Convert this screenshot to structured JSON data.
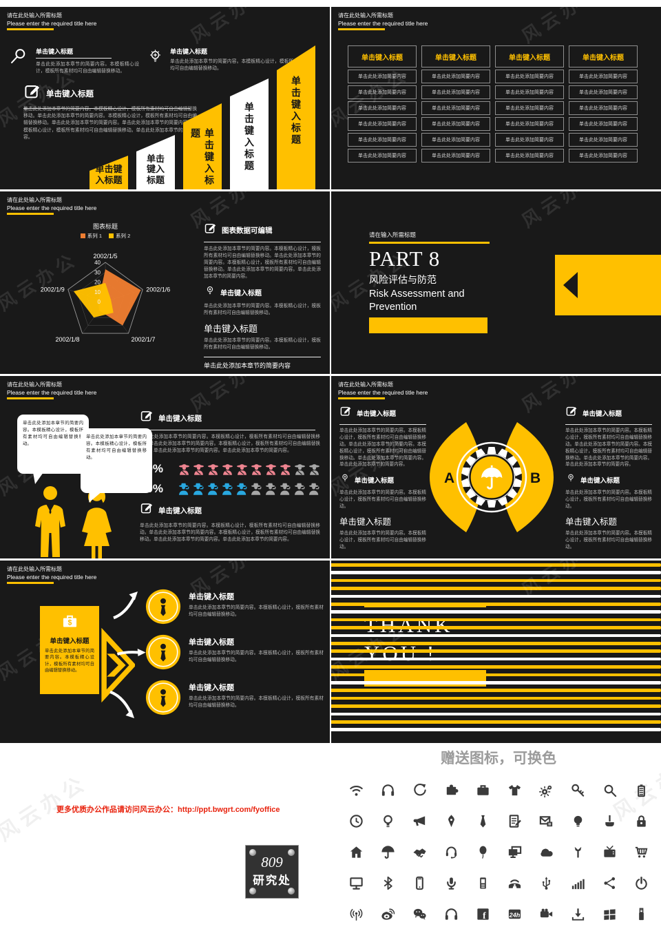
{
  "watermark": "风云办公",
  "colors": {
    "accent_yellow": "#FFC000",
    "radar_orange": "#ED7D31",
    "slide_background": "#191919",
    "figure_pink": "#EE8490",
    "figure_blue": "#29A8E0",
    "figure_gray": "#A7A7A7",
    "link_red": "#E8220D"
  },
  "slide_header": {
    "title_cn": "请在此处输入所需标题",
    "title_en": "Please enter the required title here"
  },
  "slide1": {
    "sections": [
      {
        "title": "单击键入标题",
        "body": "单击此处添加本章节的简要内容。本模板精心设计，模板所有素材均可自由编辑替换移动。"
      },
      {
        "title": "单击键入标题",
        "body": "单击此处添加本章节的简要内容。本模板精心设计，模板所有素材均可自由编辑替换移动。"
      }
    ],
    "edit_section": {
      "title": "单击键入标题",
      "body": "单击此处添加本章节的简要内容。本模板精心设计，模板所有素材均可自由编辑替换移动。单击此处添加本章节的简要内容。本模板精心设计，模板所有素材均可自由编辑替换移动。单击此处添加本章节的简要内容。单击此处添加本章节的简要内容。本模板精心设计，模板所有素材均可自由编辑替换移动。单击此处添加本章节的简要内容。"
    },
    "bars": [
      {
        "label": "单击键入标题"
      },
      {
        "label": "单击键入标题"
      },
      {
        "label": "单击键入标题"
      },
      {
        "label": "单击键入标题"
      },
      {
        "label": "单击键入标题"
      }
    ]
  },
  "slide2": {
    "columns": [
      {
        "header": "单击键入标题",
        "rows": [
          "单击此处添加简要内容",
          "单击此处添加简要内容",
          "单击此处添加简要内容",
          "单击此处添加简要内容",
          "单击此处添加简要内容",
          "单击此处添加简要内容"
        ]
      },
      {
        "header": "单击键入标题",
        "rows": [
          "单击此处添加简要内容",
          "单击此处添加简要内容",
          "单击此处添加简要内容",
          "单击此处添加简要内容",
          "单击此处添加简要内容",
          "单击此处添加简要内容"
        ]
      },
      {
        "header": "单击键入标题",
        "rows": [
          "单击此处添加简要内容",
          "单击此处添加简要内容",
          "单击此处添加简要内容",
          "单击此处添加简要内容",
          "单击此处添加简要内容",
          "单击此处添加简要内容"
        ]
      },
      {
        "header": "单击键入标题",
        "rows": [
          "单击此处添加简要内容",
          "单击此处添加简要内容",
          "单击此处添加简要内容",
          "单击此处添加简要内容",
          "单击此处添加简要内容",
          "单击此处添加简要内容"
        ]
      }
    ]
  },
  "chart_data": {
    "type": "radar",
    "title": "图表标题",
    "categories": [
      "2002/1/5",
      "2002/1/6",
      "2002/1/7",
      "2002/1/8",
      "2002/1/9"
    ],
    "series": [
      {
        "name": "系列 1",
        "color": "#ED7D31",
        "values": [
          33,
          38,
          30,
          11,
          7
        ]
      },
      {
        "name": "系列 2",
        "color": "#FFC000",
        "values": [
          19,
          6,
          14,
          20,
          34
        ]
      }
    ],
    "rmax": 40,
    "ticks": [
      40,
      30,
      20,
      10,
      0
    ],
    "legend_position": "top",
    "grid": true
  },
  "slide3": {
    "right": {
      "h1": "图表数据可编辑",
      "p1": "单击此处添加本章节的简要内容。本模板精心设计，模板所有素材均可自由编辑替换移动。单击此处添加本章节的简要内容。本模板精心设计，模板所有素材均可自由编辑替换移动。单击此处添加本章节的简要内容。单击此处添加本章节的简要内容。",
      "h2": "单击键入标题",
      "p2": "单击此处添加本章节的简要内容。本模板精心设计，模板所有素材均可自由编辑替换移动。",
      "h3": "单击键入标题",
      "p3": "单击此处添加本章节的简要内容。本模板精心设计，模板所有素材均可自由编辑替换移动。",
      "footer": "单击此处添加本章节的简要内容"
    }
  },
  "slide4": {
    "small_title": "请在输入所需标题",
    "part_label": "PART  8",
    "title_cn": "风险评估与防范",
    "title_en": "Risk Assessment and Prevention"
  },
  "slide5": {
    "bubbles": [
      "单击此处添加本章节的简要内容。本模板精心设计，模板所有素材均可自由编辑替换移动。",
      "单击此处添加本章节的简要内容。本模板精心设计，模板所有素材均可自由编辑替换移动。"
    ],
    "top": {
      "title": "单击键入标题",
      "body": "单击此处添加本章节的简要内容。本模板精心设计，模板所有素材均可自由编辑替换移动。单击此处添加本章节的简要内容。本模板精心设计，模板所有素材均可自由编辑替换移动。单击此处添加本章节的简要内容。单击此处添加本章节的简要内容。"
    },
    "stats": [
      {
        "pct": "80%",
        "filled": 8,
        "total": 10,
        "figure": "lady",
        "color": "#EE8490"
      },
      {
        "pct": "50%",
        "filled": 5,
        "total": 10,
        "figure": "man",
        "color": "#29A8E0"
      }
    ],
    "bottom": {
      "title": "单击键入标题",
      "body": "单击此处添加本章节的简要内容。本模板精心设计，模板所有素材均可自由编辑替换移动。单击此处添加本章节的简要内容。本模板精心设计，模板所有素材均可自由编辑替换移动。单击此处添加本章节的简要内容。单击此处添加本章节的简要内容。"
    }
  },
  "slide6": {
    "letters": [
      "A",
      "B"
    ],
    "left": {
      "h1": "单击键入标题",
      "p1": "单击此处添加本章节的简要内容。本模板精心设计，模板所有素材均可自由编辑替换移动。单击此处添加本章节的简要内容。本模板精心设计，模板所有素材均可自由编辑替换移动。单击此处添加本章节的简要内容。单击此处添加本章节的简要内容。",
      "h2": "单击键入标题",
      "p2": "单击此处添加本章节的简要内容。本模板精心设计，模板所有素材均可自由编辑替换移动。",
      "h3": "单击键入标题",
      "p3": "单击此处添加本章节的简要内容。本模板精心设计，模板所有素材均可自由编辑替换移动。"
    },
    "right": {
      "h1": "单击键入标题",
      "p1": "单击此处添加本章节的简要内容。本模板精心设计，模板所有素材均可自由编辑替换移动。单击此处添加本章节的简要内容。本模板精心设计，模板所有素材均可自由编辑替换移动。单击此处添加本章节的简要内容。单击此处添加本章节的简要内容。",
      "h2": "单击键入标题",
      "p2": "单击此处添加本章节的简要内容。本模板精心设计，模板所有素材均可自由编辑替换移动。",
      "h3": "单击键入标题",
      "p3": "单击此处添加本章节的简要内容。本模板精心设计，模板所有素材均可自由编辑替换移动。"
    }
  },
  "slide7": {
    "box": {
      "title": "单击键入标题",
      "body": "单击此处添加本章节的简要内容。本模板精心设计，模板所有素材均可自由编辑替换移动。"
    },
    "items": [
      {
        "title": "单击键入标题",
        "body": "单击此处添加本章节的简要内容。本模板精心设计，模板所有素材均可自由编辑替换移动。"
      },
      {
        "title": "单击键入标题",
        "body": "单击此处添加本章节的简要内容。本模板精心设计，模板所有素材均可自由编辑替换移动。"
      },
      {
        "title": "单击键入标题",
        "body": "单击此处添加本章节的简要内容。本模板精心设计，模板所有素材均可自由编辑替换移动。"
      }
    ]
  },
  "slide8": {
    "line1": "THANK",
    "line2": "YOU !",
    "stripes": [
      [
        "y",
        313
      ],
      [
        "w",
        350
      ],
      [
        "y",
        370
      ],
      [
        "y",
        350
      ],
      [
        "w",
        313
      ],
      [
        "y",
        352
      ],
      [
        "w",
        370
      ],
      [
        "y",
        327
      ],
      [
        "y",
        315
      ],
      [
        "w",
        327
      ],
      [
        "y",
        372
      ],
      [
        "y",
        372
      ],
      [
        "w",
        350
      ],
      [
        "y",
        327
      ],
      [
        "y",
        313
      ],
      [
        "w",
        350
      ],
      [
        "y",
        327
      ],
      [
        "y",
        313
      ],
      [
        "y",
        327
      ],
      [
        "w",
        370
      ],
      [
        "y",
        315
      ],
      [
        "w",
        370
      ]
    ]
  },
  "footer": {
    "link": "更多优质办公作品请访问风云办公：http://ppt.bwgrt.com/fyoffice",
    "stamp": {
      "line1": "809",
      "line2": "研究处"
    },
    "icons_title": "赠送图标，可换色",
    "icon_names": [
      "wifi",
      "headphones",
      "refresh",
      "puzzle",
      "briefcase",
      "tshirt",
      "gears",
      "key",
      "search",
      "battery",
      "clock",
      "bulb-outline",
      "megaphone",
      "pen-nib",
      "necktie",
      "notepad-pen",
      "mail-note",
      "bulb-solid",
      "paint-brush",
      "lock",
      "home",
      "umbrella",
      "handshake",
      "support-headset",
      "balloon",
      "dual-screens",
      "cloud",
      "wrench",
      "tv",
      "shopping-cart",
      "monitor",
      "bluetooth",
      "smartphone",
      "microphone",
      "cellphone",
      "telephone",
      "usb",
      "signal-bars",
      "share",
      "power",
      "broadcast-tower",
      "weibo",
      "wechat",
      "headphones-large",
      "facebook",
      "24h-badge",
      "video-camera",
      "download",
      "windows",
      "usb-drive"
    ]
  }
}
